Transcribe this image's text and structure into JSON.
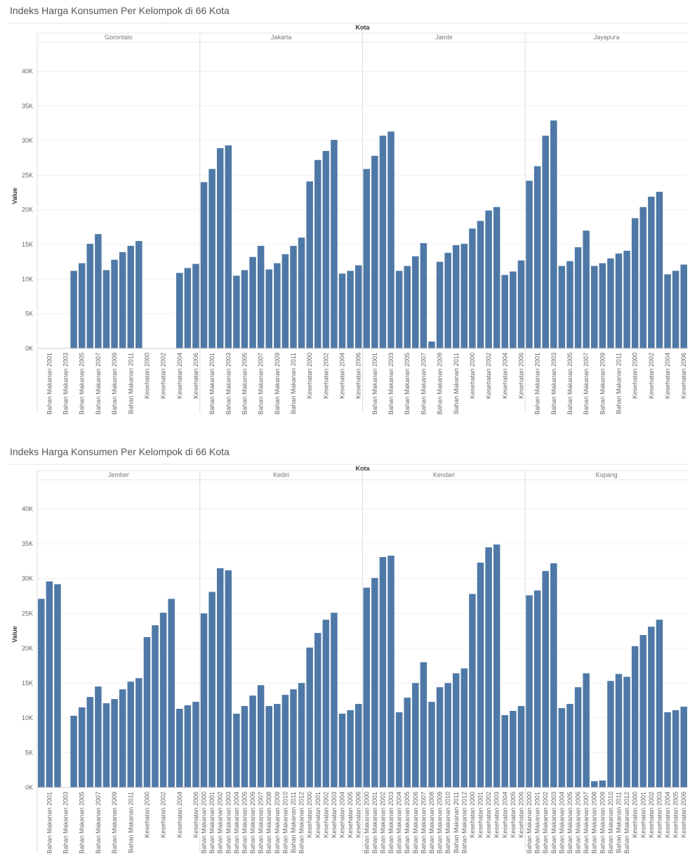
{
  "chart_data": [
    {
      "type": "bar",
      "title": "Indeks Harga Konsumen Per Kelompok di 66 Kota",
      "facet_label": "Kota",
      "y_label": "Value",
      "color": "#4e79a7",
      "grid": true,
      "ylim": [
        0,
        44000
      ],
      "yticks": [
        {
          "value": 0,
          "label": "0K"
        },
        {
          "value": 5000,
          "label": "5K"
        },
        {
          "value": 10000,
          "label": "10K"
        },
        {
          "value": 15000,
          "label": "15K"
        },
        {
          "value": 20000,
          "label": "20K"
        },
        {
          "value": 25000,
          "label": "25K"
        },
        {
          "value": 30000,
          "label": "30K"
        },
        {
          "value": 35000,
          "label": "35K"
        },
        {
          "value": 40000,
          "label": "40K"
        }
      ],
      "panels": [
        {
          "name": "Gorontalo",
          "categories": [
            null,
            "Bahan Makanan 2001",
            null,
            "Bahan Makanan 2003",
            null,
            "Bahan Makanan 2005",
            null,
            "Bahan Makanan 2007",
            null,
            "Bahan Makanan 2009",
            null,
            "Bahan Makanan 2011",
            null,
            "Kesehatan 2000",
            null,
            "Kesehatan 2002",
            null,
            "Kesehatan 2004",
            null,
            "Kesehatan 2006"
          ],
          "values": [
            null,
            null,
            null,
            null,
            11200,
            12300,
            15100,
            16500,
            11300,
            12800,
            13900,
            14800,
            15500,
            null,
            null,
            null,
            null,
            10900,
            11600,
            12200
          ]
        },
        {
          "name": "Jakarta",
          "categories": [
            null,
            "Bahan Makanan 2001",
            null,
            "Bahan Makanan 2003",
            null,
            "Bahan Makanan 2005",
            null,
            "Bahan Makanan 2007",
            null,
            "Bahan Makanan 2009",
            null,
            "Bahan Makanan 2011",
            null,
            "Kesehatan 2000",
            null,
            "Kesehatan 2002",
            null,
            "Kesehatan 2004",
            null,
            "Kesehatan 2006"
          ],
          "values": [
            24000,
            25900,
            28900,
            29300,
            10500,
            11300,
            13200,
            14800,
            11400,
            12300,
            13600,
            14800,
            16000,
            24100,
            27200,
            28500,
            30100,
            10800,
            11200,
            12000
          ]
        },
        {
          "name": "Jambi",
          "categories": [
            null,
            "Bahan Makanan 2001",
            null,
            "Bahan Makanan 2003",
            null,
            "Bahan Makanan 2005",
            null,
            "Bahan Makanan 2007",
            null,
            "Bahan Makanan 2009",
            null,
            "Bahan Makanan 2011",
            null,
            "Kesehatan 2000",
            null,
            "Kesehatan 2002",
            null,
            "Kesehatan 2004",
            null,
            "Kesehatan 2006"
          ],
          "values": [
            25900,
            27800,
            30700,
            31300,
            11200,
            11900,
            13300,
            15200,
            1000,
            12500,
            13800,
            14900,
            15100,
            17300,
            18400,
            19900,
            20400,
            10600,
            11100,
            12700
          ]
        },
        {
          "name": "Jayapura",
          "categories": [
            null,
            "Bahan Makanan 2001",
            null,
            "Bahan Makanan 2003",
            null,
            "Bahan Makanan 2005",
            null,
            "Bahan Makanan 2007",
            null,
            "Bahan Makanan 2009",
            null,
            "Bahan Makanan 2011",
            null,
            "Kesehatan 2000",
            null,
            "Kesehatan 2002",
            null,
            "Kesehatan 2004",
            null,
            "Kesehatan 2006"
          ],
          "values": [
            24200,
            26300,
            30700,
            32900,
            11900,
            12600,
            14600,
            17000,
            11900,
            12300,
            13000,
            13700,
            14100,
            18800,
            20400,
            21900,
            22600,
            10700,
            11200,
            12100
          ]
        }
      ]
    },
    {
      "type": "bar",
      "title": "Indeks Harga Konsumen Per Kelompok di 66 Kota",
      "facet_label": "Kota",
      "y_label": "Value",
      "color": "#4e79a7",
      "grid": true,
      "ylim": [
        0,
        44000
      ],
      "yticks": [
        {
          "value": 0,
          "label": "0K"
        },
        {
          "value": 5000,
          "label": "5K"
        },
        {
          "value": 10000,
          "label": "10K"
        },
        {
          "value": 15000,
          "label": "15K"
        },
        {
          "value": 20000,
          "label": "20K"
        },
        {
          "value": 25000,
          "label": "25K"
        },
        {
          "value": 30000,
          "label": "30K"
        },
        {
          "value": 35000,
          "label": "35K"
        },
        {
          "value": 40000,
          "label": "40K"
        }
      ],
      "panels": [
        {
          "name": "Jember",
          "categories": [
            null,
            "Bahan Makanan 2001",
            null,
            "Bahan Makanan 2003",
            null,
            "Bahan Makanan 2005",
            null,
            "Bahan Makanan 2007",
            null,
            "Bahan Makanan 2009",
            null,
            "Bahan Makanan 2011",
            null,
            "Kesehatan 2000",
            null,
            "Kesehatan 2002",
            null,
            "Kesehatan 2004",
            null,
            "Kesehatan 2006"
          ],
          "values": [
            27100,
            29600,
            29200,
            null,
            10300,
            11500,
            13000,
            14500,
            12100,
            12700,
            14100,
            15200,
            15700,
            21600,
            23300,
            25100,
            27100,
            11300,
            11800,
            12300
          ]
        },
        {
          "name": "Kediri",
          "categories": [
            "Bahan Makanan 2000",
            "Bahan Makanan 2001",
            "Bahan Makanan 2002",
            "Bahan Makanan 2003",
            "Bahan Makanan 2004",
            "Bahan Makanan 2005",
            "Bahan Makanan 2006",
            "Bahan Makanan 2007",
            "Bahan Makanan 2008",
            "Bahan Makanan 2009",
            "Bahan Makanan 2010",
            "Bahan Makanan 2011",
            "Bahan Makanan 2012",
            "Kesehatan 2000",
            "Kesehatan 2001",
            "Kesehatan 2002",
            "Kesehatan 2003",
            "Kesehatan 2004",
            "Kesehatan 2005",
            "Kesehatan 2006"
          ],
          "values": [
            25000,
            28100,
            31500,
            31200,
            10600,
            11700,
            13200,
            14700,
            11700,
            12000,
            13300,
            14100,
            15000,
            20100,
            22200,
            24100,
            25100,
            10600,
            11100,
            12000
          ]
        },
        {
          "name": "Kendari",
          "categories": [
            "Bahan Makanan 2000",
            "Bahan Makanan 2001",
            "Bahan Makanan 2002",
            "Bahan Makanan 2003",
            "Bahan Makanan 2004",
            "Bahan Makanan 2005",
            "Bahan Makanan 2006",
            "Bahan Makanan 2007",
            "Bahan Makanan 2008",
            "Bahan Makanan 2009",
            "Bahan Makanan 2010",
            "Bahan Makanan 2011",
            "Bahan Makanan 2012",
            "Kesehatan 2000",
            "Kesehatan 2001",
            "Kesehatan 2002",
            "Kesehatan 2003",
            "Kesehatan 2004",
            "Kesehatan 2005",
            "Kesehatan 2006"
          ],
          "values": [
            28700,
            30100,
            33100,
            33300,
            10800,
            12900,
            15000,
            18000,
            12300,
            14400,
            15000,
            16400,
            17100,
            27800,
            32300,
            34500,
            34900,
            10400,
            11000,
            11700
          ]
        },
        {
          "name": "Kupang",
          "categories": [
            "Bahan Makanan 2000",
            "Bahan Makanan 2001",
            "Bahan Makanan 2002",
            "Bahan Makanan 2003",
            "Bahan Makanan 2004",
            "Bahan Makanan 2005",
            "Bahan Makanan 2006",
            "Bahan Makanan 2007",
            "Bahan Makanan 2008",
            "Bahan Makanan 2009",
            "Bahan Makanan 2010",
            "Bahan Makanan 2011",
            "Bahan Makanan 2012",
            "Kesehatan 2000",
            "Kesehatan 2001",
            "Kesehatan 2002",
            "Kesehatan 2003",
            "Kesehatan 2004",
            "Kesehatan 2005",
            "Kesehatan 2006"
          ],
          "values": [
            27600,
            28300,
            31100,
            32200,
            11400,
            12000,
            14400,
            16400,
            900,
            1000,
            15300,
            16300,
            15900,
            20300,
            21900,
            23100,
            24100,
            10800,
            11100,
            11600
          ]
        }
      ]
    }
  ]
}
